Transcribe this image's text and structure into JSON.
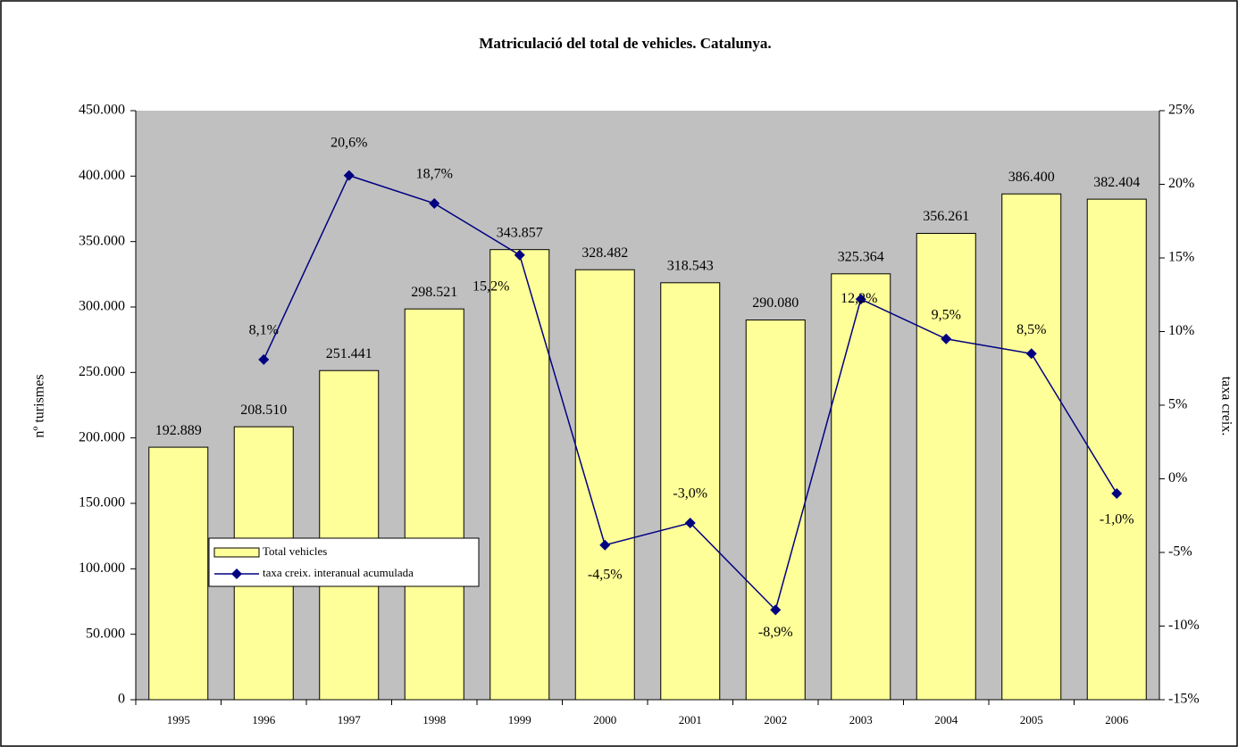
{
  "chart_data": {
    "type": "bar-line",
    "title": "Matriculació del total de vehicles. Catalunya.",
    "y_label": "nº turismes",
    "y2_label": "taxa creix.",
    "categories": [
      "1995",
      "1996",
      "1997",
      "1998",
      "1999",
      "2000",
      "2001",
      "2002",
      "2003",
      "2004",
      "2005",
      "2006"
    ],
    "series": [
      {
        "name": "Total vehicles",
        "type": "bar",
        "color": "#ffff99",
        "values": [
          192889,
          208510,
          251441,
          298521,
          343857,
          328482,
          318543,
          290080,
          325364,
          356261,
          386400,
          382404
        ],
        "value_labels": [
          "192.889",
          "208.510",
          "251.441",
          "298.521",
          "343.857",
          "328.482",
          "318.543",
          "290.080",
          "325.364",
          "356.261",
          "386.400",
          "382.404"
        ]
      },
      {
        "name": "taxa creix. interanual acumulada",
        "type": "line",
        "axis": "y2",
        "color": "#000080",
        "values": [
          null,
          8.1,
          20.6,
          18.7,
          15.2,
          -4.5,
          -3.0,
          -8.9,
          12.2,
          9.5,
          8.5,
          -1.0
        ],
        "value_labels": [
          null,
          "8,1%",
          "20,6%",
          "18,7%",
          "15,2%",
          "-4,5%",
          "-3,0%",
          "-8,9%",
          "12,2%",
          "9,5%",
          "8,5%",
          "-1,0%"
        ]
      }
    ],
    "ylim": [
      0,
      450000
    ],
    "yticks": [
      0,
      {
        "value": 50000,
        "label": "50.000"
      },
      {
        "value": 100000,
        "label": "100.000"
      },
      {
        "value": 150000,
        "label": "150.000"
      },
      {
        "value": 200000,
        "label": "200.000"
      },
      {
        "value": 250000,
        "label": "250.000"
      },
      {
        "value": 300000,
        "label": "300.000"
      },
      {
        "value": 350000,
        "label": "350.000"
      },
      {
        "value": 400000,
        "label": "400.000"
      },
      {
        "value": 450000,
        "label": "450.000"
      }
    ],
    "y2lim": [
      -15,
      25
    ],
    "y2ticks": [
      {
        "value": -15,
        "label": "-15%"
      },
      {
        "value": -10,
        "label": "-10%"
      },
      {
        "value": -5,
        "label": "-5%"
      },
      {
        "value": 0,
        "label": "0%"
      },
      {
        "value": 5,
        "label": "5%"
      },
      {
        "value": 10,
        "label": "10%"
      },
      {
        "value": 15,
        "label": "15%"
      },
      {
        "value": 20,
        "label": "20%"
      },
      {
        "value": 25,
        "label": "25%"
      }
    ],
    "grid": false,
    "legend": "lower-left"
  }
}
